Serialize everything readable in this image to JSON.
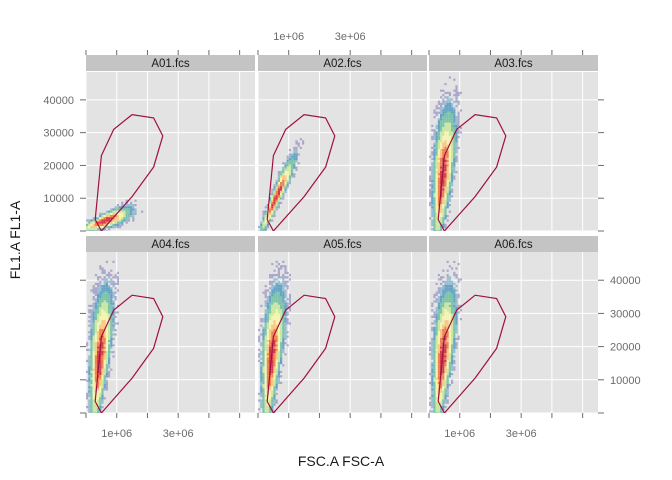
{
  "chart_data": {
    "type": "scatter",
    "subtype": "faceted-density-with-gate",
    "xlabel": "FSC.A FSC-A",
    "ylabel": "FL1.A FL1-A",
    "layout": {
      "rows": 2,
      "cols": 3
    },
    "xlim": [
      0,
      5500000
    ],
    "ylim": [
      0,
      48500
    ],
    "x_ticks": [
      0,
      1000000,
      2000000,
      3000000,
      4000000,
      5000000
    ],
    "x_tick_labels": [
      {
        "value": 1000000,
        "label": "1e+06"
      },
      {
        "value": 3000000,
        "label": "3e+06"
      }
    ],
    "y_ticks": [
      0,
      10000,
      20000,
      30000,
      40000
    ],
    "y_tick_labels": [
      {
        "value": 10000,
        "label": "10000"
      },
      {
        "value": 20000,
        "label": "20000"
      },
      {
        "value": 30000,
        "label": "30000"
      },
      {
        "value": 40000,
        "label": "40000"
      }
    ],
    "panels": [
      {
        "label": "A01.fcs",
        "density": "low-diagonal",
        "peak": [
          350000,
          2000
        ]
      },
      {
        "label": "A02.fcs",
        "density": "medium-diagonal",
        "peak": [
          450000,
          12000
        ]
      },
      {
        "label": "A03.fcs",
        "density": "steep-plume",
        "peak": [
          500000,
          18000
        ]
      },
      {
        "label": "A04.fcs",
        "density": "steep-plume",
        "peak": [
          480000,
          18000
        ]
      },
      {
        "label": "A05.fcs",
        "density": "steep-plume",
        "peak": [
          480000,
          16000
        ]
      },
      {
        "label": "A06.fcs",
        "density": "steep-plume",
        "peak": [
          450000,
          17000
        ]
      }
    ],
    "gate": {
      "color": "#a0103c",
      "vertices": [
        [
          300000,
          3500
        ],
        [
          500000,
          23000
        ],
        [
          900000,
          31000
        ],
        [
          1500000,
          35500
        ],
        [
          2200000,
          34500
        ],
        [
          2500000,
          29000
        ],
        [
          2200000,
          19500
        ],
        [
          1500000,
          10500
        ],
        [
          500000,
          0
        ]
      ]
    },
    "density_palette": [
      "#7b79b6",
      "#5e9fc4",
      "#76c2a5",
      "#c9e79e",
      "#f6f6b0",
      "#fdc67b",
      "#f07c4a",
      "#d0303f"
    ],
    "panel_background": "#e3e3e3",
    "grid": true,
    "grid_color": "#ffffff",
    "strip_background": "#c4c4c4",
    "axis_ticks_layout": "alternating"
  }
}
